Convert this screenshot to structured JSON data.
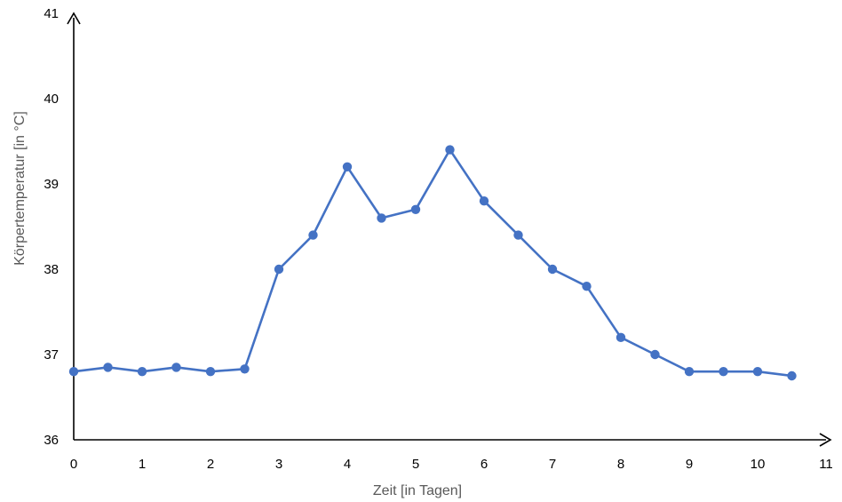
{
  "chart_data": {
    "type": "line",
    "title": "",
    "xlabel": "Zeit [in Tagen]",
    "ylabel": "Körpertemperatur [in °C]",
    "xlim": [
      0,
      11
    ],
    "ylim": [
      36,
      41
    ],
    "x_ticks": [
      0,
      1,
      2,
      3,
      4,
      5,
      6,
      7,
      8,
      9,
      10,
      11
    ],
    "y_ticks": [
      36,
      37,
      38,
      39,
      40,
      41
    ],
    "grid": false,
    "series": [
      {
        "color": "#4472C4",
        "x": [
          0,
          0.5,
          1,
          1.5,
          2,
          2.5,
          3,
          3.5,
          4,
          4.5,
          5,
          5.5,
          6,
          6.5,
          7,
          7.5,
          8,
          8.5,
          9,
          9.5,
          10,
          10.5
        ],
        "y": [
          36.8,
          36.85,
          36.8,
          36.85,
          36.8,
          36.83,
          38.0,
          38.4,
          39.2,
          38.6,
          38.7,
          39.4,
          38.8,
          38.4,
          38.0,
          37.8,
          37.2,
          37.0,
          36.8,
          36.8,
          36.8,
          36.75
        ]
      }
    ]
  }
}
